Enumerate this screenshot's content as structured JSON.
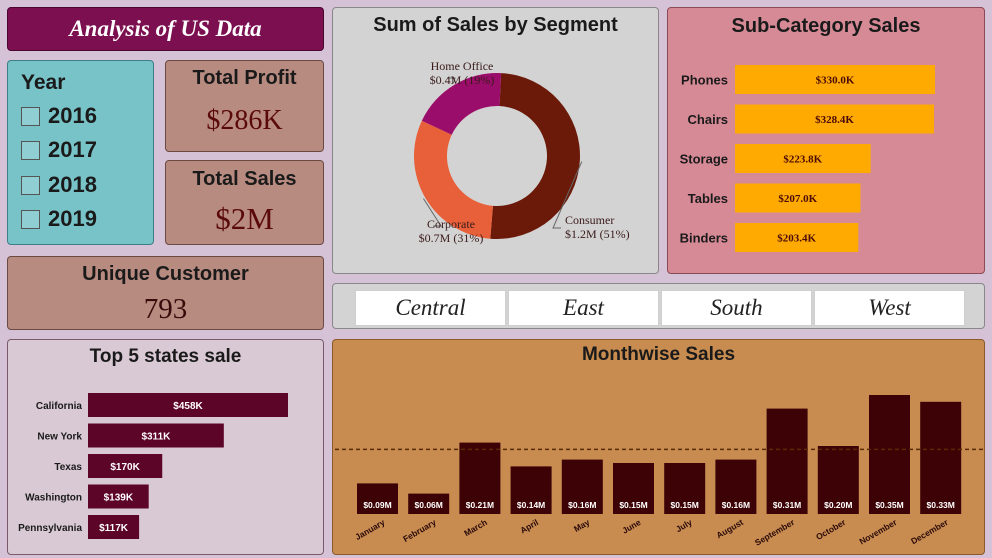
{
  "header": {
    "title": "Analysis of US Data"
  },
  "year_slicer": {
    "title": "Year",
    "options": [
      "2016",
      "2017",
      "2018",
      "2019"
    ]
  },
  "kpis": {
    "total_profit": {
      "title": "Total Profit",
      "value": "$286K"
    },
    "total_sales": {
      "title": "Total Sales",
      "value": "$2M"
    },
    "unique_customer": {
      "title": "Unique Customer",
      "value": "793"
    }
  },
  "region_slicer": {
    "options": [
      "Central",
      "East",
      "South",
      "West"
    ]
  },
  "colors": {
    "consumer": "#6b1a0a",
    "corporate": "#e8603a",
    "home_office": "#9b0d6a",
    "subcat_bar": "#ffaa00",
    "state_bar": "#5c0528",
    "month_bar": "#3d0205"
  },
  "chart_data": [
    {
      "type": "pie",
      "title": "Sum of Sales by Segment",
      "slices": [
        {
          "name": "Consumer",
          "label": "$1.2M (51%)",
          "value": 51
        },
        {
          "name": "Corporate",
          "label": "$0.7M (31%)",
          "value": 31
        },
        {
          "name": "Home Office",
          "label": "$0.4M (19%)",
          "value": 19
        }
      ]
    },
    {
      "type": "bar",
      "title": "Sub-Category Sales",
      "categories": [
        "Phones",
        "Chairs",
        "Storage",
        "Tables",
        "Binders"
      ],
      "values": [
        330.0,
        328.4,
        223.8,
        207.0,
        203.4
      ],
      "labels": [
        "$330.0K",
        "$328.4K",
        "$223.8K",
        "$207.0K",
        "$203.4K"
      ]
    },
    {
      "type": "bar",
      "title": "Top 5 states sale",
      "categories": [
        "California",
        "New York",
        "Texas",
        "Washington",
        "Pennsylvania"
      ],
      "values": [
        458,
        311,
        170,
        139,
        117
      ],
      "labels": [
        "$458K",
        "$311K",
        "$170K",
        "$139K",
        "$117K"
      ]
    },
    {
      "type": "bar",
      "title": "Monthwise Sales",
      "categories": [
        "January",
        "February",
        "March",
        "April",
        "May",
        "June",
        "July",
        "August",
        "September",
        "October",
        "November",
        "December"
      ],
      "values": [
        0.09,
        0.06,
        0.21,
        0.14,
        0.16,
        0.15,
        0.15,
        0.16,
        0.31,
        0.2,
        0.35,
        0.33
      ],
      "labels": [
        "$0.09M",
        "$0.06M",
        "$0.21M",
        "$0.14M",
        "$0.16M",
        "$0.15M",
        "$0.15M",
        "$0.16M",
        "$0.31M",
        "$0.20M",
        "$0.35M",
        "$0.33M"
      ],
      "average_line": 0.19
    }
  ]
}
